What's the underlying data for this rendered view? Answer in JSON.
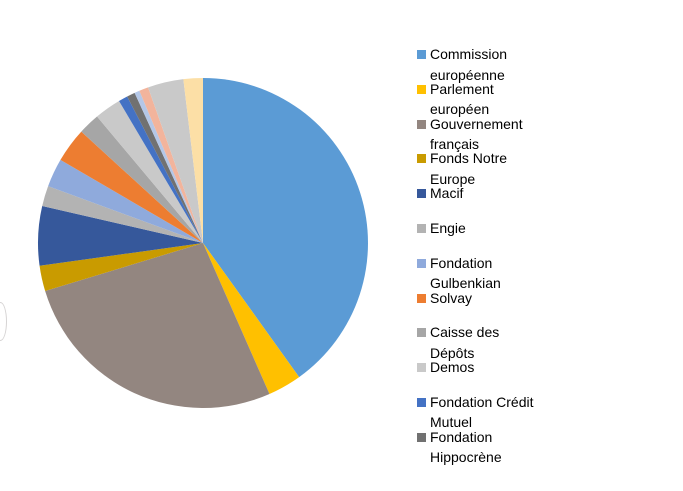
{
  "chart_data": {
    "type": "pie",
    "title": "",
    "legend_position": "right",
    "start_angle_deg": 0,
    "direction": "clockwise",
    "slices": [
      {
        "id": "commission-europeenne",
        "label": "Commission européenne",
        "value": 40.1,
        "color": "#5B9BD5"
      },
      {
        "id": "parlement-europeen",
        "label": "Parlement européen",
        "value": 3.3,
        "color": "#FFC000"
      },
      {
        "id": "gouvernement-francais",
        "label": "Gouvernement français",
        "value": 26.9,
        "color": "#938680"
      },
      {
        "id": "fonds-notre-europe",
        "label": "Fonds Notre Europe",
        "value": 2.5,
        "color": "#C99B00"
      },
      {
        "id": "macif",
        "label": "Macif",
        "value": 5.8,
        "color": "#36589B"
      },
      {
        "id": "engie",
        "label": "Engie",
        "value": 2.0,
        "color": "#B3B3B3"
      },
      {
        "id": "fondation-gulbenkian",
        "label": "Fondation Gulbenkian",
        "value": 2.8,
        "color": "#8FAADC"
      },
      {
        "id": "solvay",
        "label": "Solvay",
        "value": 3.4,
        "color": "#ED7D31"
      },
      {
        "id": "caisse-des-depots",
        "label": "Caisse des Dépôts",
        "value": 2.1,
        "color": "#A6A6A6"
      },
      {
        "id": "demos",
        "label": "Demos",
        "value": 2.6,
        "color": "#C9C9C9"
      },
      {
        "id": "fondation-credit-mutuel",
        "label": "Fondation Crédit Mutuel",
        "value": 0.9,
        "color": "#4472C4"
      },
      {
        "id": "fondation-hippocrene",
        "label": "Fondation Hippocrène",
        "value": 0.8,
        "color": "#717171"
      },
      {
        "id": "unlabeled-1",
        "label": "",
        "value": 0.5,
        "color": "#B4C7E7"
      },
      {
        "id": "unlabeled-2",
        "label": "",
        "value": 0.9,
        "color": "#F2B49C"
      },
      {
        "id": "unlabeled-3",
        "label": "",
        "value": 3.5,
        "color": "#C9C9C9"
      },
      {
        "id": "unlabeled-4",
        "label": "",
        "value": 1.9,
        "color": "#FCDFA6"
      }
    ]
  },
  "legend": {
    "items": [
      {
        "slice_index": 0,
        "lines": [
          "Commission",
          "européenne"
        ]
      },
      {
        "slice_index": 1,
        "lines": [
          "Parlement",
          "européen"
        ]
      },
      {
        "slice_index": 2,
        "lines": [
          "Gouvernement",
          "français"
        ]
      },
      {
        "slice_index": 3,
        "lines": [
          "Fonds Notre",
          "Europe"
        ]
      },
      {
        "slice_index": 4,
        "lines": [
          "Macif"
        ]
      },
      {
        "slice_index": 5,
        "lines": [
          "Engie"
        ]
      },
      {
        "slice_index": 6,
        "lines": [
          "Fondation",
          "Gulbenkian"
        ]
      },
      {
        "slice_index": 7,
        "lines": [
          "Solvay"
        ]
      },
      {
        "slice_index": 8,
        "lines": [
          "Caisse des",
          "Dépôts"
        ]
      },
      {
        "slice_index": 9,
        "lines": [
          "Demos"
        ]
      },
      {
        "slice_index": 10,
        "lines": [
          "Fondation Crédit",
          "Mutuel"
        ]
      },
      {
        "slice_index": 11,
        "lines": [
          "Fondation",
          "Hippocrène"
        ]
      }
    ]
  }
}
